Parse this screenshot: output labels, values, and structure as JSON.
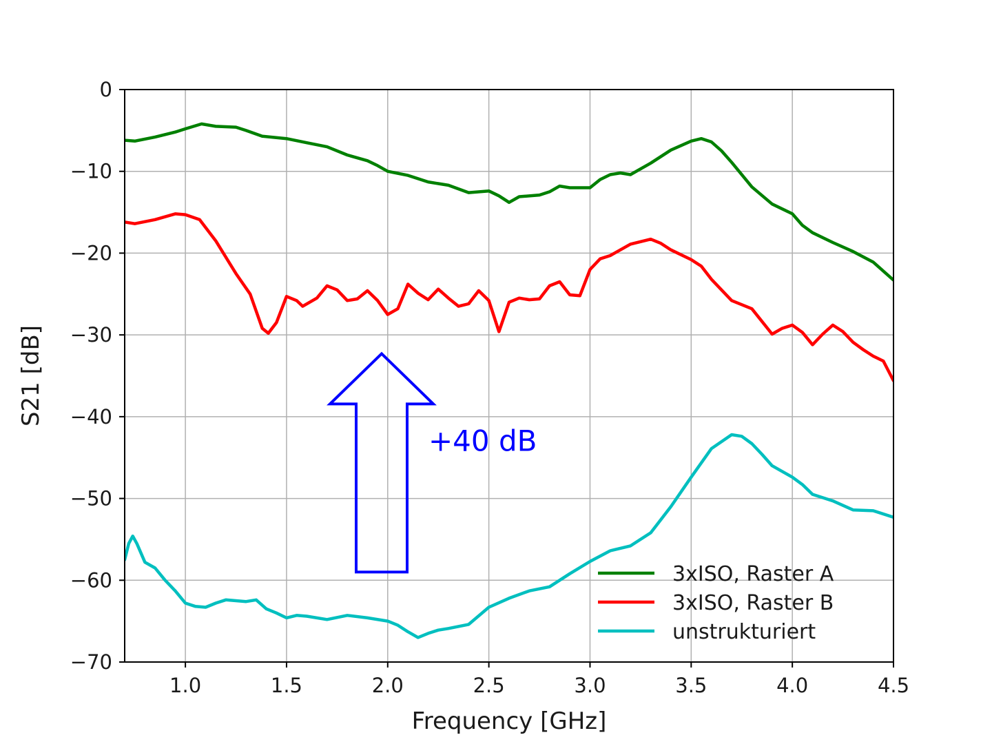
{
  "chart_data": {
    "type": "line",
    "xlabel": "Frequency [GHz]",
    "ylabel": "S21 [dB]",
    "xlim": [
      0.7,
      4.5
    ],
    "ylim": [
      -70,
      0
    ],
    "xticks": [
      1.0,
      1.5,
      2.0,
      2.5,
      3.0,
      3.5,
      4.0,
      4.5
    ],
    "xtick_labels": [
      "1.0",
      "1.5",
      "2.0",
      "2.5",
      "3.0",
      "3.5",
      "4.0",
      "4.5"
    ],
    "yticks": [
      0,
      -10,
      -20,
      -30,
      -40,
      -50,
      -60,
      -70
    ],
    "ytick_labels": [
      "0",
      "−10",
      "−20",
      "−30",
      "−40",
      "−50",
      "−60",
      "−70"
    ],
    "grid": true,
    "legend_position": "lower-right",
    "series": [
      {
        "name": "3xISO, Raster A",
        "color": "#008000",
        "x": [
          0.7,
          0.75,
          0.85,
          0.95,
          1.0,
          1.08,
          1.15,
          1.25,
          1.3,
          1.38,
          1.5,
          1.6,
          1.7,
          1.8,
          1.9,
          1.95,
          2.0,
          2.1,
          2.2,
          2.3,
          2.4,
          2.5,
          2.55,
          2.6,
          2.65,
          2.75,
          2.8,
          2.85,
          2.9,
          2.95,
          3.0,
          3.05,
          3.1,
          3.15,
          3.2,
          3.3,
          3.4,
          3.5,
          3.55,
          3.6,
          3.65,
          3.7,
          3.8,
          3.9,
          4.0,
          4.05,
          4.1,
          4.2,
          4.3,
          4.4,
          4.5
        ],
        "values": [
          -6.2,
          -6.3,
          -5.8,
          -5.2,
          -4.8,
          -4.2,
          -4.5,
          -4.6,
          -5.0,
          -5.7,
          -6.0,
          -6.5,
          -7.0,
          -8.0,
          -8.7,
          -9.3,
          -10.0,
          -10.5,
          -11.3,
          -11.7,
          -12.6,
          -12.4,
          -13.0,
          -13.8,
          -13.1,
          -12.9,
          -12.5,
          -11.8,
          -12.0,
          -12.0,
          -12.0,
          -11.0,
          -10.4,
          -10.2,
          -10.4,
          -9.0,
          -7.4,
          -6.3,
          -6.0,
          -6.4,
          -7.5,
          -8.9,
          -11.9,
          -14.0,
          -15.2,
          -16.6,
          -17.5,
          -18.7,
          -19.8,
          -21.1,
          -23.3
        ]
      },
      {
        "name": "3xISO, Raster B",
        "color": "#ff0000",
        "x": [
          0.7,
          0.75,
          0.85,
          0.95,
          1.0,
          1.07,
          1.15,
          1.25,
          1.32,
          1.38,
          1.41,
          1.45,
          1.5,
          1.55,
          1.58,
          1.65,
          1.7,
          1.75,
          1.8,
          1.85,
          1.9,
          1.95,
          2.0,
          2.05,
          2.1,
          2.15,
          2.2,
          2.25,
          2.3,
          2.35,
          2.4,
          2.45,
          2.5,
          2.55,
          2.6,
          2.65,
          2.7,
          2.75,
          2.8,
          2.85,
          2.9,
          2.95,
          3.0,
          3.05,
          3.1,
          3.2,
          3.3,
          3.35,
          3.4,
          3.5,
          3.55,
          3.6,
          3.7,
          3.8,
          3.9,
          3.95,
          4.0,
          4.05,
          4.1,
          4.15,
          4.2,
          4.25,
          4.3,
          4.35,
          4.4,
          4.45,
          4.5
        ],
        "values": [
          -16.2,
          -16.4,
          -15.9,
          -15.2,
          -15.3,
          -15.9,
          -18.5,
          -22.5,
          -25.0,
          -29.2,
          -29.8,
          -28.5,
          -25.3,
          -25.8,
          -26.5,
          -25.5,
          -24.0,
          -24.5,
          -25.8,
          -25.6,
          -24.6,
          -25.8,
          -27.5,
          -26.8,
          -23.8,
          -24.9,
          -25.7,
          -24.4,
          -25.5,
          -26.5,
          -26.2,
          -24.6,
          -25.8,
          -29.6,
          -26.0,
          -25.5,
          -25.7,
          -25.6,
          -24.0,
          -23.5,
          -25.1,
          -25.2,
          -22.0,
          -20.7,
          -20.3,
          -18.9,
          -18.3,
          -18.8,
          -19.6,
          -20.8,
          -21.6,
          -23.2,
          -25.8,
          -26.8,
          -29.9,
          -29.2,
          -28.8,
          -29.7,
          -31.2,
          -29.9,
          -28.8,
          -29.6,
          -30.9,
          -31.8,
          -32.6,
          -33.2,
          -35.6
        ]
      },
      {
        "name": "unstrukturiert",
        "color": "#00bfbf",
        "x": [
          0.7,
          0.72,
          0.74,
          0.76,
          0.8,
          0.85,
          0.9,
          0.95,
          1.0,
          1.05,
          1.1,
          1.15,
          1.2,
          1.25,
          1.3,
          1.35,
          1.4,
          1.45,
          1.5,
          1.55,
          1.6,
          1.7,
          1.8,
          1.9,
          2.0,
          2.05,
          2.1,
          2.15,
          2.2,
          2.25,
          2.3,
          2.4,
          2.5,
          2.6,
          2.7,
          2.8,
          2.9,
          3.0,
          3.1,
          3.2,
          3.3,
          3.4,
          3.5,
          3.6,
          3.7,
          3.75,
          3.8,
          3.85,
          3.9,
          4.0,
          4.05,
          4.1,
          4.2,
          4.3,
          4.4,
          4.5
        ],
        "values": [
          -57.5,
          -55.5,
          -54.6,
          -55.5,
          -57.8,
          -58.5,
          -60.0,
          -61.3,
          -62.8,
          -63.2,
          -63.3,
          -62.8,
          -62.4,
          -62.5,
          -62.6,
          -62.4,
          -63.5,
          -64.0,
          -64.6,
          -64.3,
          -64.4,
          -64.8,
          -64.3,
          -64.6,
          -65.0,
          -65.5,
          -66.3,
          -67.0,
          -66.5,
          -66.1,
          -65.9,
          -65.4,
          -63.3,
          -62.2,
          -61.3,
          -60.8,
          -59.2,
          -57.7,
          -56.4,
          -55.8,
          -54.2,
          -51.0,
          -47.4,
          -43.9,
          -42.2,
          -42.4,
          -43.3,
          -44.6,
          -46.0,
          -47.4,
          -48.3,
          -49.5,
          -50.3,
          -51.4,
          -51.5,
          -52.3
        ]
      }
    ],
    "annotation": {
      "text": "+40 dB",
      "color": "#0000ff",
      "arrow_from_y": -59,
      "arrow_to_y": -32.3,
      "arrow_x": 1.97
    }
  }
}
